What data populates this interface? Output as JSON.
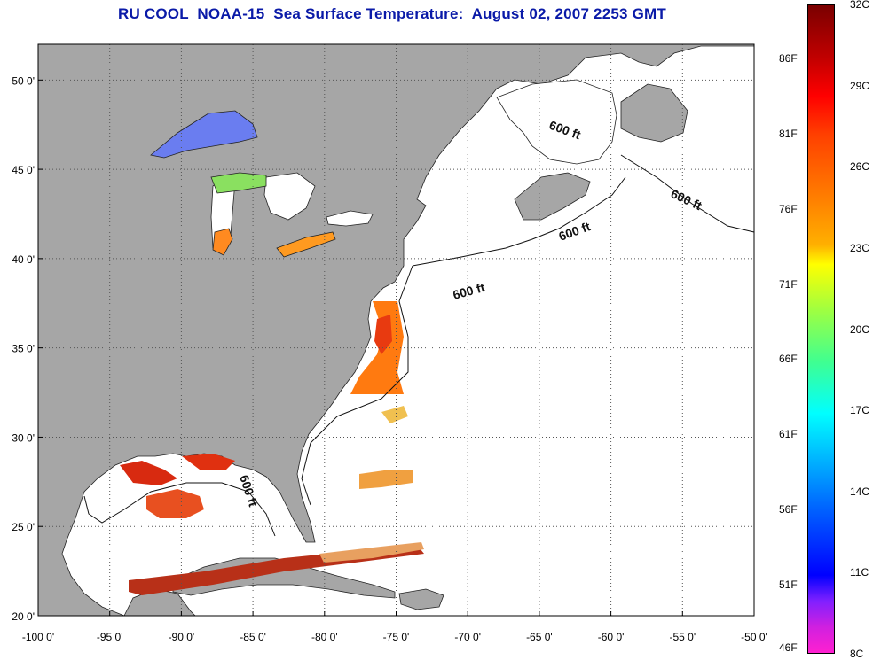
{
  "title": "RU COOL  NOAA-15  Sea Surface Temperature:  August 02, 2007 2253 GMT",
  "map": {
    "lon_range": [
      -100,
      -50
    ],
    "lat_range": [
      20,
      52
    ],
    "lon_ticks": [
      "-100 0'",
      "-95 0'",
      "-90 0'",
      "-85 0'",
      "-80 0'",
      "-75 0'",
      "-70 0'",
      "-65 0'",
      "-60 0'",
      "-55 0'",
      "-50 0'"
    ],
    "lat_ticks": [
      "20 0'",
      "25 0'",
      "30 0'",
      "35 0'",
      "40 0'",
      "45 0'",
      "50 0'"
    ],
    "contour_labels": [
      "600 ft",
      "600 ft",
      "600 ft",
      "600 ft",
      "600 ft"
    ],
    "colors": {
      "land": "#a6a6a6",
      "ocean": "#ffffff",
      "grid": "#555555"
    }
  },
  "colorbar": {
    "fahrenheit": [
      "86F",
      "81F",
      "76F",
      "71F",
      "66F",
      "61F",
      "56F",
      "51F",
      "46F"
    ],
    "celsius": [
      "32C",
      "29C",
      "26C",
      "23C",
      "20C",
      "17C",
      "14C",
      "11C",
      "8C"
    ]
  }
}
